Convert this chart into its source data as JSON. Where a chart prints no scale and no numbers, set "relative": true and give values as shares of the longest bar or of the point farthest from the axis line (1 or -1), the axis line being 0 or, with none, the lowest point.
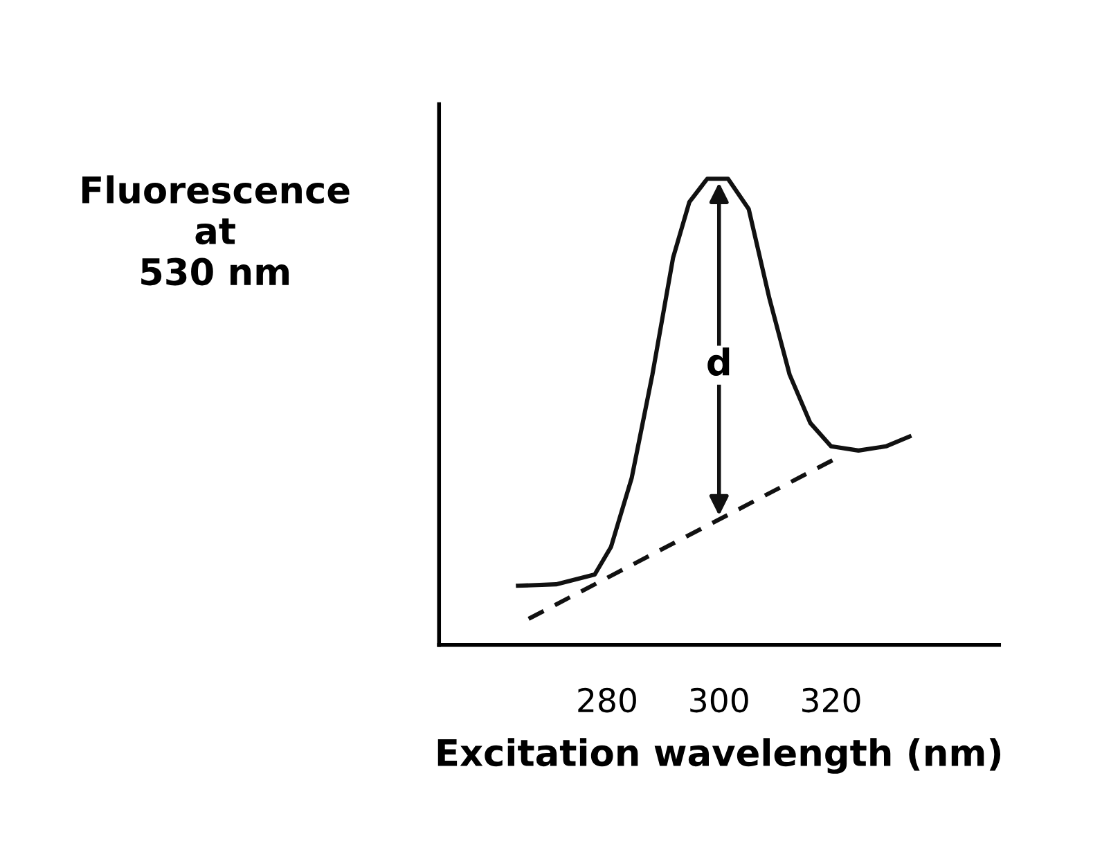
{
  "chart_data": {
    "type": "line",
    "relative": true,
    "xlabel": "Excitation wavelength (nm)",
    "ylabel": "Fluorescence\nat\n530 nm",
    "xlim": [
      250,
      350
    ],
    "xticks": [
      280,
      300,
      320
    ],
    "grid": false,
    "legend": false,
    "marker": "none",
    "series": [
      {
        "color": "#111111",
        "line_style": "solid",
        "x": [
          264.1,
          270.9,
          277.8,
          280.7,
          284.4,
          288.1,
          291.8,
          294.7,
          297.9,
          301.6,
          305.3,
          309.0,
          312.6,
          316.3,
          320.0,
          324.9,
          329.8,
          334.0
        ],
        "values": [
          0.127,
          0.13,
          0.151,
          0.21,
          0.358,
          0.58,
          0.831,
          0.95,
          1.0,
          1.0,
          0.935,
          0.743,
          0.58,
          0.476,
          0.426,
          0.417,
          0.426,
          0.447
        ]
      },
      {
        "type": "line",
        "color": "#111111",
        "line_style": "dashed",
        "x": [
          266.0,
          321.2
        ],
        "values": [
          0.056,
          0.402
        ]
      }
    ],
    "annotations": [
      {
        "text": "d",
        "x": 300,
        "y": 0.6
      }
    ]
  }
}
